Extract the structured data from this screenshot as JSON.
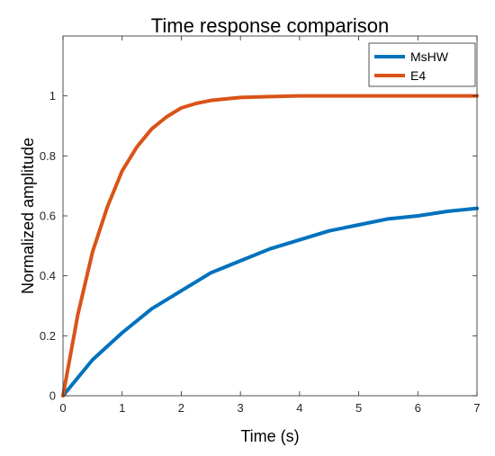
{
  "chart_data": {
    "type": "line",
    "title": "Time response comparison",
    "xlabel": "Time (s)",
    "ylabel": "Normalized amplitude",
    "xlim": [
      0,
      7
    ],
    "ylim": [
      0,
      1.2
    ],
    "xticks": [
      "0",
      "1",
      "2",
      "3",
      "4",
      "5",
      "6",
      "7"
    ],
    "yticks": [
      "0",
      "0.2",
      "0.4",
      "0.6",
      "0.8",
      "1"
    ],
    "grid": false,
    "legend_position": "top-right",
    "series": [
      {
        "name": "MsHW",
        "color": "#0072BD",
        "x": [
          0,
          0.5,
          1,
          1.5,
          2,
          2.5,
          3,
          3.5,
          4,
          4.5,
          5,
          5.5,
          6,
          6.5,
          7
        ],
        "y": [
          0,
          0.12,
          0.21,
          0.29,
          0.35,
          0.41,
          0.45,
          0.49,
          0.52,
          0.55,
          0.57,
          0.59,
          0.6,
          0.615,
          0.625
        ]
      },
      {
        "name": "E4",
        "color": "#D95319",
        "x": [
          0,
          0.25,
          0.5,
          0.75,
          1,
          1.25,
          1.5,
          1.75,
          2,
          2.25,
          2.5,
          3,
          3.5,
          4,
          5,
          6,
          7
        ],
        "y": [
          0,
          0.27,
          0.48,
          0.63,
          0.75,
          0.83,
          0.89,
          0.93,
          0.96,
          0.975,
          0.985,
          0.995,
          0.998,
          1.0,
          1.0,
          1.0,
          1.0
        ]
      }
    ]
  }
}
